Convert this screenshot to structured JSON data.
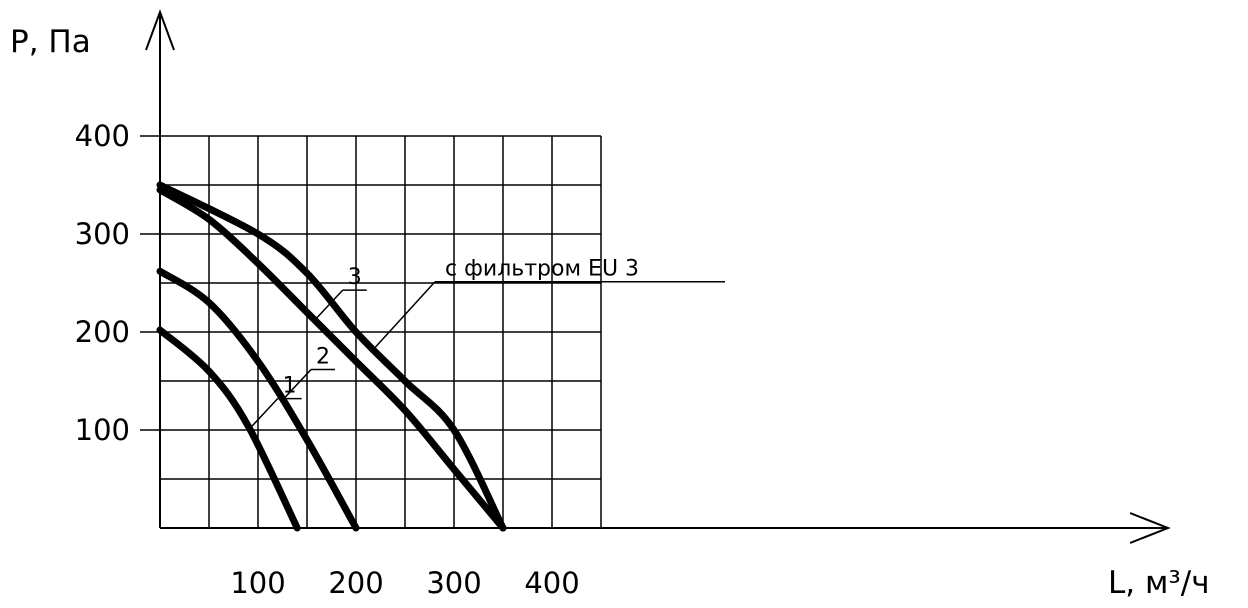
{
  "chart_data": {
    "type": "line",
    "ylabel": "P, Па",
    "xlabel": "L, м³/ч",
    "x_ticks": [
      "100",
      "200",
      "300",
      "400"
    ],
    "y_ticks": [
      "100",
      "200",
      "300",
      "400"
    ],
    "xlim": [
      0,
      450
    ],
    "ylim": [
      0,
      400
    ],
    "grid": true,
    "series": [
      {
        "name": "1",
        "x": [
          0,
          50,
          90,
          140
        ],
        "y": [
          202,
          160,
          104,
          0
        ]
      },
      {
        "name": "2",
        "x": [
          0,
          50,
          100,
          150,
          200
        ],
        "y": [
          262,
          230,
          170,
          90,
          0
        ]
      },
      {
        "name": "3",
        "x": [
          0,
          50,
          100,
          150,
          200,
          250,
          300,
          350
        ],
        "y": [
          345,
          315,
          270,
          220,
          170,
          120,
          60,
          0
        ]
      },
      {
        "name": "с фильтром EU 3",
        "x": [
          0,
          100,
          150,
          200,
          250,
          300,
          350
        ],
        "y": [
          350,
          300,
          260,
          200,
          150,
          100,
          0
        ]
      }
    ]
  }
}
